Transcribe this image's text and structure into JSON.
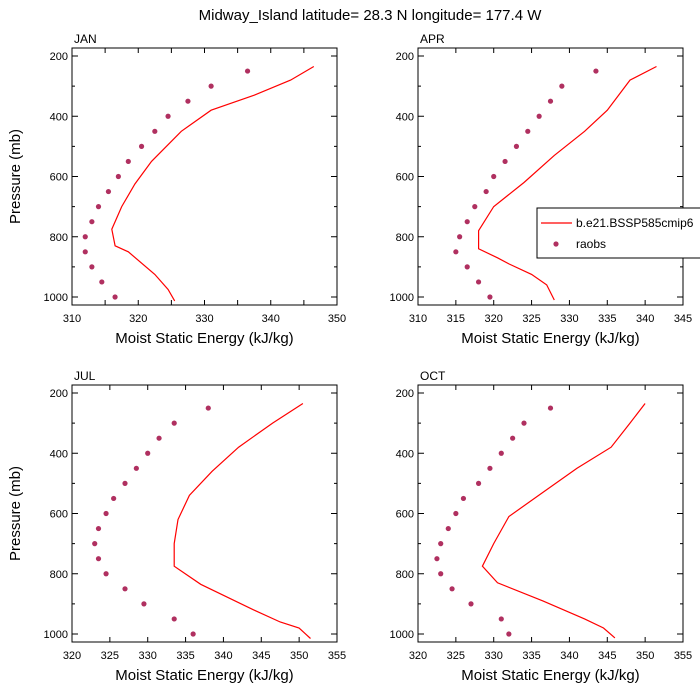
{
  "title": "Midway_Island  latitude= 28.3 N longitude= 177.4 W",
  "colors": {
    "model": "#ff0000",
    "obs": "#b03060",
    "axis": "#000000"
  },
  "legend": {
    "entries": [
      {
        "label": "b.e21.BSSP585cmip6",
        "marker": "line"
      },
      {
        "label": "raobs",
        "marker": "dot"
      }
    ]
  },
  "chart_data": [
    {
      "type": "scatter",
      "panel": "JAN",
      "xlabel": "Moist Static Energy (kJ/kg)",
      "ylabel": "Pressure (mb)",
      "xlim": [
        310,
        350
      ],
      "ylim": [
        1000,
        200
      ],
      "xticks": [
        310,
        315,
        320,
        325,
        330,
        335,
        340,
        345,
        350
      ],
      "xticklabels": [
        "310",
        "320",
        "330",
        "340",
        "350"
      ],
      "yticks": [
        200,
        400,
        600,
        800,
        1000
      ],
      "series": [
        {
          "name": "b.e21.BSSP585cmip6",
          "style": "line",
          "x": [
            325.5,
            324.5,
            322.5,
            318.5,
            316.5,
            316.0,
            317.5,
            319.5,
            322.0,
            326.5,
            331.0,
            337.5,
            343.0,
            346.5
          ],
          "y": [
            1013,
            975,
            925,
            850,
            830,
            775,
            700,
            625,
            550,
            450,
            380,
            330,
            280,
            235
          ]
        },
        {
          "name": "raobs",
          "style": "dots",
          "x": [
            316.5,
            314.5,
            313.0,
            312.0,
            312.0,
            313.0,
            314.0,
            315.5,
            317.0,
            318.5,
            320.5,
            322.5,
            324.5,
            327.5,
            331.0,
            336.5
          ],
          "y": [
            1000,
            950,
            900,
            850,
            800,
            750,
            700,
            650,
            600,
            550,
            500,
            450,
            400,
            350,
            300,
            250
          ]
        }
      ]
    },
    {
      "type": "scatter",
      "panel": "APR",
      "xlabel": "Moist Static Energy (kJ/kg)",
      "ylabel": "",
      "xlim": [
        310,
        345
      ],
      "ylim": [
        1000,
        200
      ],
      "xticks": [
        310,
        315,
        320,
        325,
        330,
        335,
        340,
        345
      ],
      "xticklabels": [
        "310",
        "315",
        "320",
        "325",
        "330",
        "335",
        "340",
        "345"
      ],
      "yticks": [
        200,
        400,
        600,
        800,
        1000
      ],
      "series": [
        {
          "name": "b.e21.BSSP585cmip6",
          "style": "line",
          "x": [
            328.0,
            327.0,
            325.0,
            322.0,
            320.5,
            318.0,
            318.0,
            320.0,
            324.0,
            328.0,
            332.0,
            335.0,
            338.0,
            341.5
          ],
          "y": [
            1010,
            960,
            925,
            890,
            870,
            840,
            780,
            700,
            620,
            530,
            450,
            380,
            280,
            235
          ]
        },
        {
          "name": "raobs",
          "style": "dots",
          "x": [
            319.5,
            318.0,
            316.5,
            315.0,
            315.5,
            316.5,
            317.5,
            319.0,
            320.0,
            321.5,
            323.0,
            324.5,
            326.0,
            327.5,
            329.0,
            333.5
          ],
          "y": [
            1000,
            950,
            900,
            850,
            800,
            750,
            700,
            650,
            600,
            550,
            500,
            450,
            400,
            350,
            300,
            250
          ]
        }
      ]
    },
    {
      "type": "scatter",
      "panel": "JUL",
      "xlabel": "Moist Static Energy (kJ/kg)",
      "ylabel": "Pressure (mb)",
      "xlim": [
        320,
        355
      ],
      "ylim": [
        1000,
        200
      ],
      "xticks": [
        320,
        325,
        330,
        335,
        340,
        345,
        350,
        355
      ],
      "xticklabels": [
        "320",
        "325",
        "330",
        "335",
        "340",
        "345",
        "350",
        "355"
      ],
      "yticks": [
        200,
        400,
        600,
        800,
        1000
      ],
      "series": [
        {
          "name": "b.e21.BSSP585cmip6",
          "style": "line",
          "x": [
            351.5,
            350.0,
            347.5,
            344.0,
            337.0,
            333.5,
            333.5,
            334.0,
            335.5,
            338.5,
            342.0,
            346.5,
            350.5
          ],
          "y": [
            1015,
            980,
            960,
            920,
            835,
            775,
            700,
            620,
            540,
            460,
            380,
            300,
            235
          ]
        },
        {
          "name": "raobs",
          "style": "dots",
          "x": [
            336.0,
            333.5,
            329.5,
            327.0,
            324.5,
            323.5,
            323.0,
            323.5,
            324.5,
            325.5,
            327.0,
            328.5,
            330.0,
            331.5,
            333.5,
            338.0
          ],
          "y": [
            1000,
            950,
            900,
            850,
            800,
            750,
            700,
            650,
            600,
            550,
            500,
            450,
            400,
            350,
            300,
            250
          ]
        }
      ]
    },
    {
      "type": "scatter",
      "panel": "OCT",
      "xlabel": "Moist Static Energy (kJ/kg)",
      "ylabel": "",
      "xlim": [
        320,
        355
      ],
      "ylim": [
        1000,
        200
      ],
      "xticks": [
        320,
        325,
        330,
        335,
        340,
        345,
        350,
        355
      ],
      "xticklabels": [
        "320",
        "325",
        "330",
        "335",
        "340",
        "345",
        "350",
        "355"
      ],
      "yticks": [
        200,
        400,
        600,
        800,
        1000
      ],
      "series": [
        {
          "name": "b.e21.BSSP585cmip6",
          "style": "line",
          "x": [
            346.0,
            344.5,
            342.0,
            336.5,
            330.5,
            328.5,
            330.0,
            332.0,
            336.5,
            341.0,
            345.5,
            348.0,
            350.0
          ],
          "y": [
            1013,
            980,
            950,
            890,
            830,
            775,
            700,
            610,
            530,
            450,
            380,
            300,
            235
          ]
        },
        {
          "name": "raobs",
          "style": "dots",
          "x": [
            332.0,
            331.0,
            327.0,
            324.5,
            323.0,
            322.5,
            323.0,
            324.0,
            325.0,
            326.0,
            328.0,
            329.5,
            331.0,
            332.5,
            334.0,
            337.5
          ],
          "y": [
            1000,
            950,
            900,
            850,
            800,
            750,
            700,
            650,
            600,
            550,
            500,
            450,
            400,
            350,
            300,
            250
          ]
        }
      ]
    }
  ]
}
